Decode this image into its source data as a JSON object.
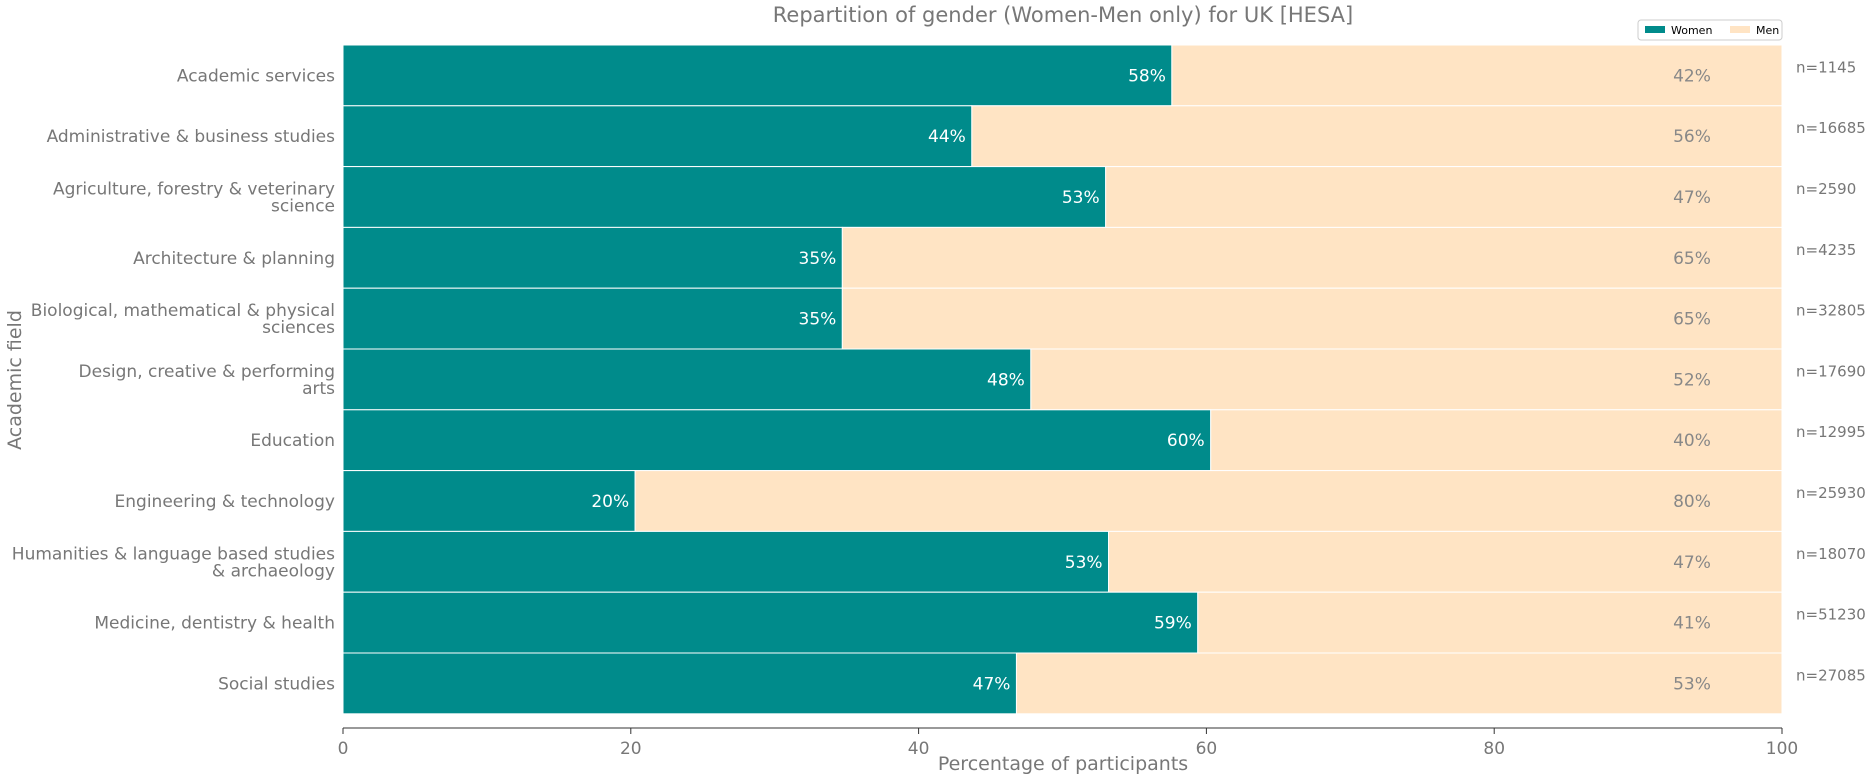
{
  "chart_data": {
    "type": "bar",
    "orientation": "horizontal",
    "stacked": true,
    "title": "Repartition of gender (Women-Men only) for UK [HESA]",
    "xlabel": "Percentage of participants",
    "ylabel": "Academic field",
    "xlim": [
      0,
      100
    ],
    "xticks": [
      "0",
      "20",
      "40",
      "60",
      "80",
      "100"
    ],
    "legend_position": "top-right",
    "grid": false,
    "categories": [
      [
        "Academic services"
      ],
      [
        "Administrative & business studies"
      ],
      [
        "Agriculture, forestry & veterinary",
        "science"
      ],
      [
        "Architecture & planning"
      ],
      [
        "Biological, mathematical & physical",
        "sciences"
      ],
      [
        "Design, creative & performing",
        "arts"
      ],
      [
        "Education"
      ],
      [
        "Engineering & technology"
      ],
      [
        "Humanities & language based studies",
        "& archaeology"
      ],
      [
        "Medicine, dentistry & health"
      ],
      [
        "Social studies"
      ]
    ],
    "series": [
      {
        "name": "Women",
        "color": "#008b8b",
        "values": [
          57.6,
          43.7,
          53.0,
          34.7,
          34.7,
          47.8,
          60.3,
          20.3,
          53.2,
          59.4,
          46.8
        ],
        "labels": [
          "58%",
          "44%",
          "53%",
          "35%",
          "35%",
          "48%",
          "60%",
          "20%",
          "53%",
          "59%",
          "47%"
        ]
      },
      {
        "name": "Men",
        "color": "#ffe4c4",
        "values": [
          42.4,
          56.3,
          47.0,
          65.3,
          65.3,
          52.2,
          39.7,
          79.7,
          46.8,
          40.6,
          53.2
        ],
        "labels": [
          "42%",
          "56%",
          "47%",
          "65%",
          "65%",
          "52%",
          "40%",
          "80%",
          "47%",
          "41%",
          "53%"
        ]
      }
    ],
    "n_labels": [
      "n=1145",
      "n=16685",
      "n=2590",
      "n=4235",
      "n=32805",
      "n=17690",
      "n=12995",
      "n=25930",
      "n=18070",
      "n=51230",
      "n=27085"
    ]
  }
}
